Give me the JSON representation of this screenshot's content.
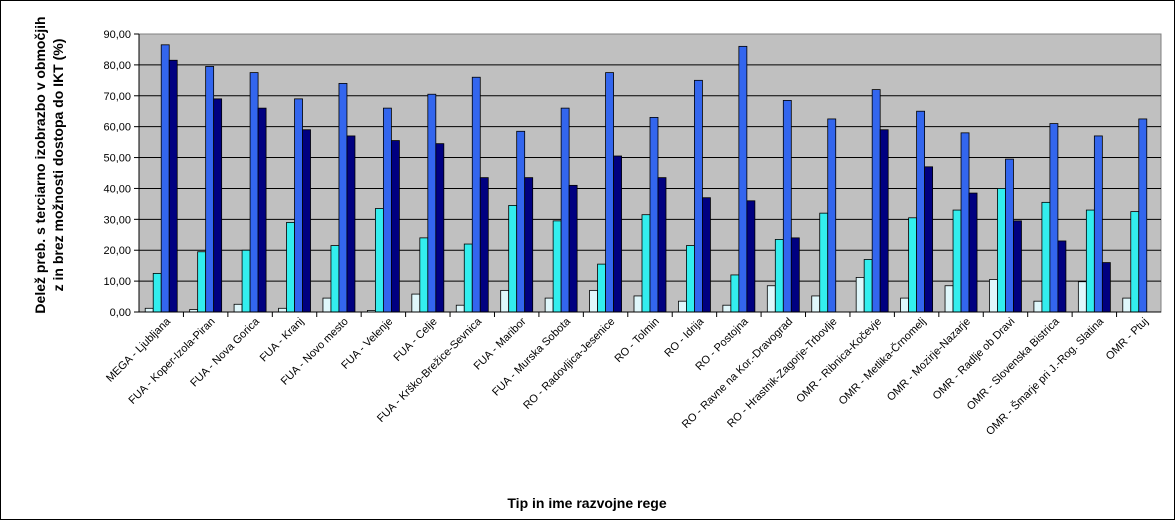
{
  "chart_data": {
    "type": "bar",
    "title": "",
    "xlabel": "Tip in ime razvojne rege",
    "ylabel_line1": "Delež preb. s terciarno izobrazbo v območjih",
    "ylabel_line2": "z in brez možnosti dostopa do IKT (%)",
    "ylim": [
      0,
      90
    ],
    "yticks": [
      "0,00",
      "10,00",
      "20,00",
      "30,00",
      "40,00",
      "50,00",
      "60,00",
      "70,00",
      "80,00",
      "90,00"
    ],
    "grid": true,
    "legend": "none",
    "categories": [
      "MEGA - Ljubljana",
      "FUA - Koper-Izola-Piran",
      "FUA - Nova Gorica",
      "FUA - Kranj",
      "FUA - Novo mesto",
      "FUA - Velenje",
      "FUA - Celje",
      "FUA - Krško-Brežice-Sevnica",
      "FUA - Maribor",
      "FUA - Murska Sobota",
      "RO - Radovljica-Jesenice",
      "RO - Tolmin",
      "RO - Idrija",
      "RO - Postojna",
      "RO - Ravne na Kor.-Dravograd",
      "RO - Hrastnik-Zagorje-Trbovlje",
      "OMR - Ribnica-Kočevje",
      "OMR - Metlika-Črnomelj",
      "OMR - Mozirje-Nazarje",
      "OMR - Radlje ob Dravi",
      "OMR - Slovenska Bistrica",
      "OMR - Šmarje pri J.-Rog. Slatina",
      "OMR - Ptuj"
    ],
    "series": [
      {
        "color": "#dff7fb",
        "values": [
          1.2,
          0.8,
          2.5,
          1.2,
          4.5,
          0.5,
          5.8,
          2.2,
          7.0,
          4.5,
          7.0,
          5.2,
          3.5,
          2.2,
          8.5,
          5.2,
          11.2,
          4.5,
          8.5,
          10.5,
          3.5,
          9.8,
          4.5
        ]
      },
      {
        "color": "#33eeee",
        "values": [
          12.5,
          19.5,
          20.0,
          29.0,
          21.5,
          33.5,
          24.0,
          22.0,
          34.5,
          29.5,
          15.5,
          31.5,
          21.5,
          12.0,
          23.5,
          32.0,
          17.0,
          30.5,
          33.0,
          40.0,
          35.5,
          33.0,
          32.5
        ]
      },
      {
        "color": "#3366ee",
        "values": [
          86.5,
          79.5,
          77.5,
          69.0,
          74.0,
          66.0,
          70.5,
          76.0,
          58.5,
          66.0,
          77.5,
          63.0,
          75.0,
          86.0,
          68.5,
          62.5,
          72.0,
          65.0,
          58.0,
          49.5,
          61.0,
          57.0,
          62.5
        ]
      },
      {
        "color": "#000080",
        "values": [
          81.5,
          69.0,
          66.0,
          59.0,
          57.0,
          55.5,
          54.5,
          43.5,
          43.5,
          41.0,
          50.5,
          43.5,
          37.0,
          36.0,
          24.0,
          null,
          59.0,
          47.0,
          38.5,
          29.5,
          23.0,
          16.0,
          null
        ]
      }
    ]
  }
}
